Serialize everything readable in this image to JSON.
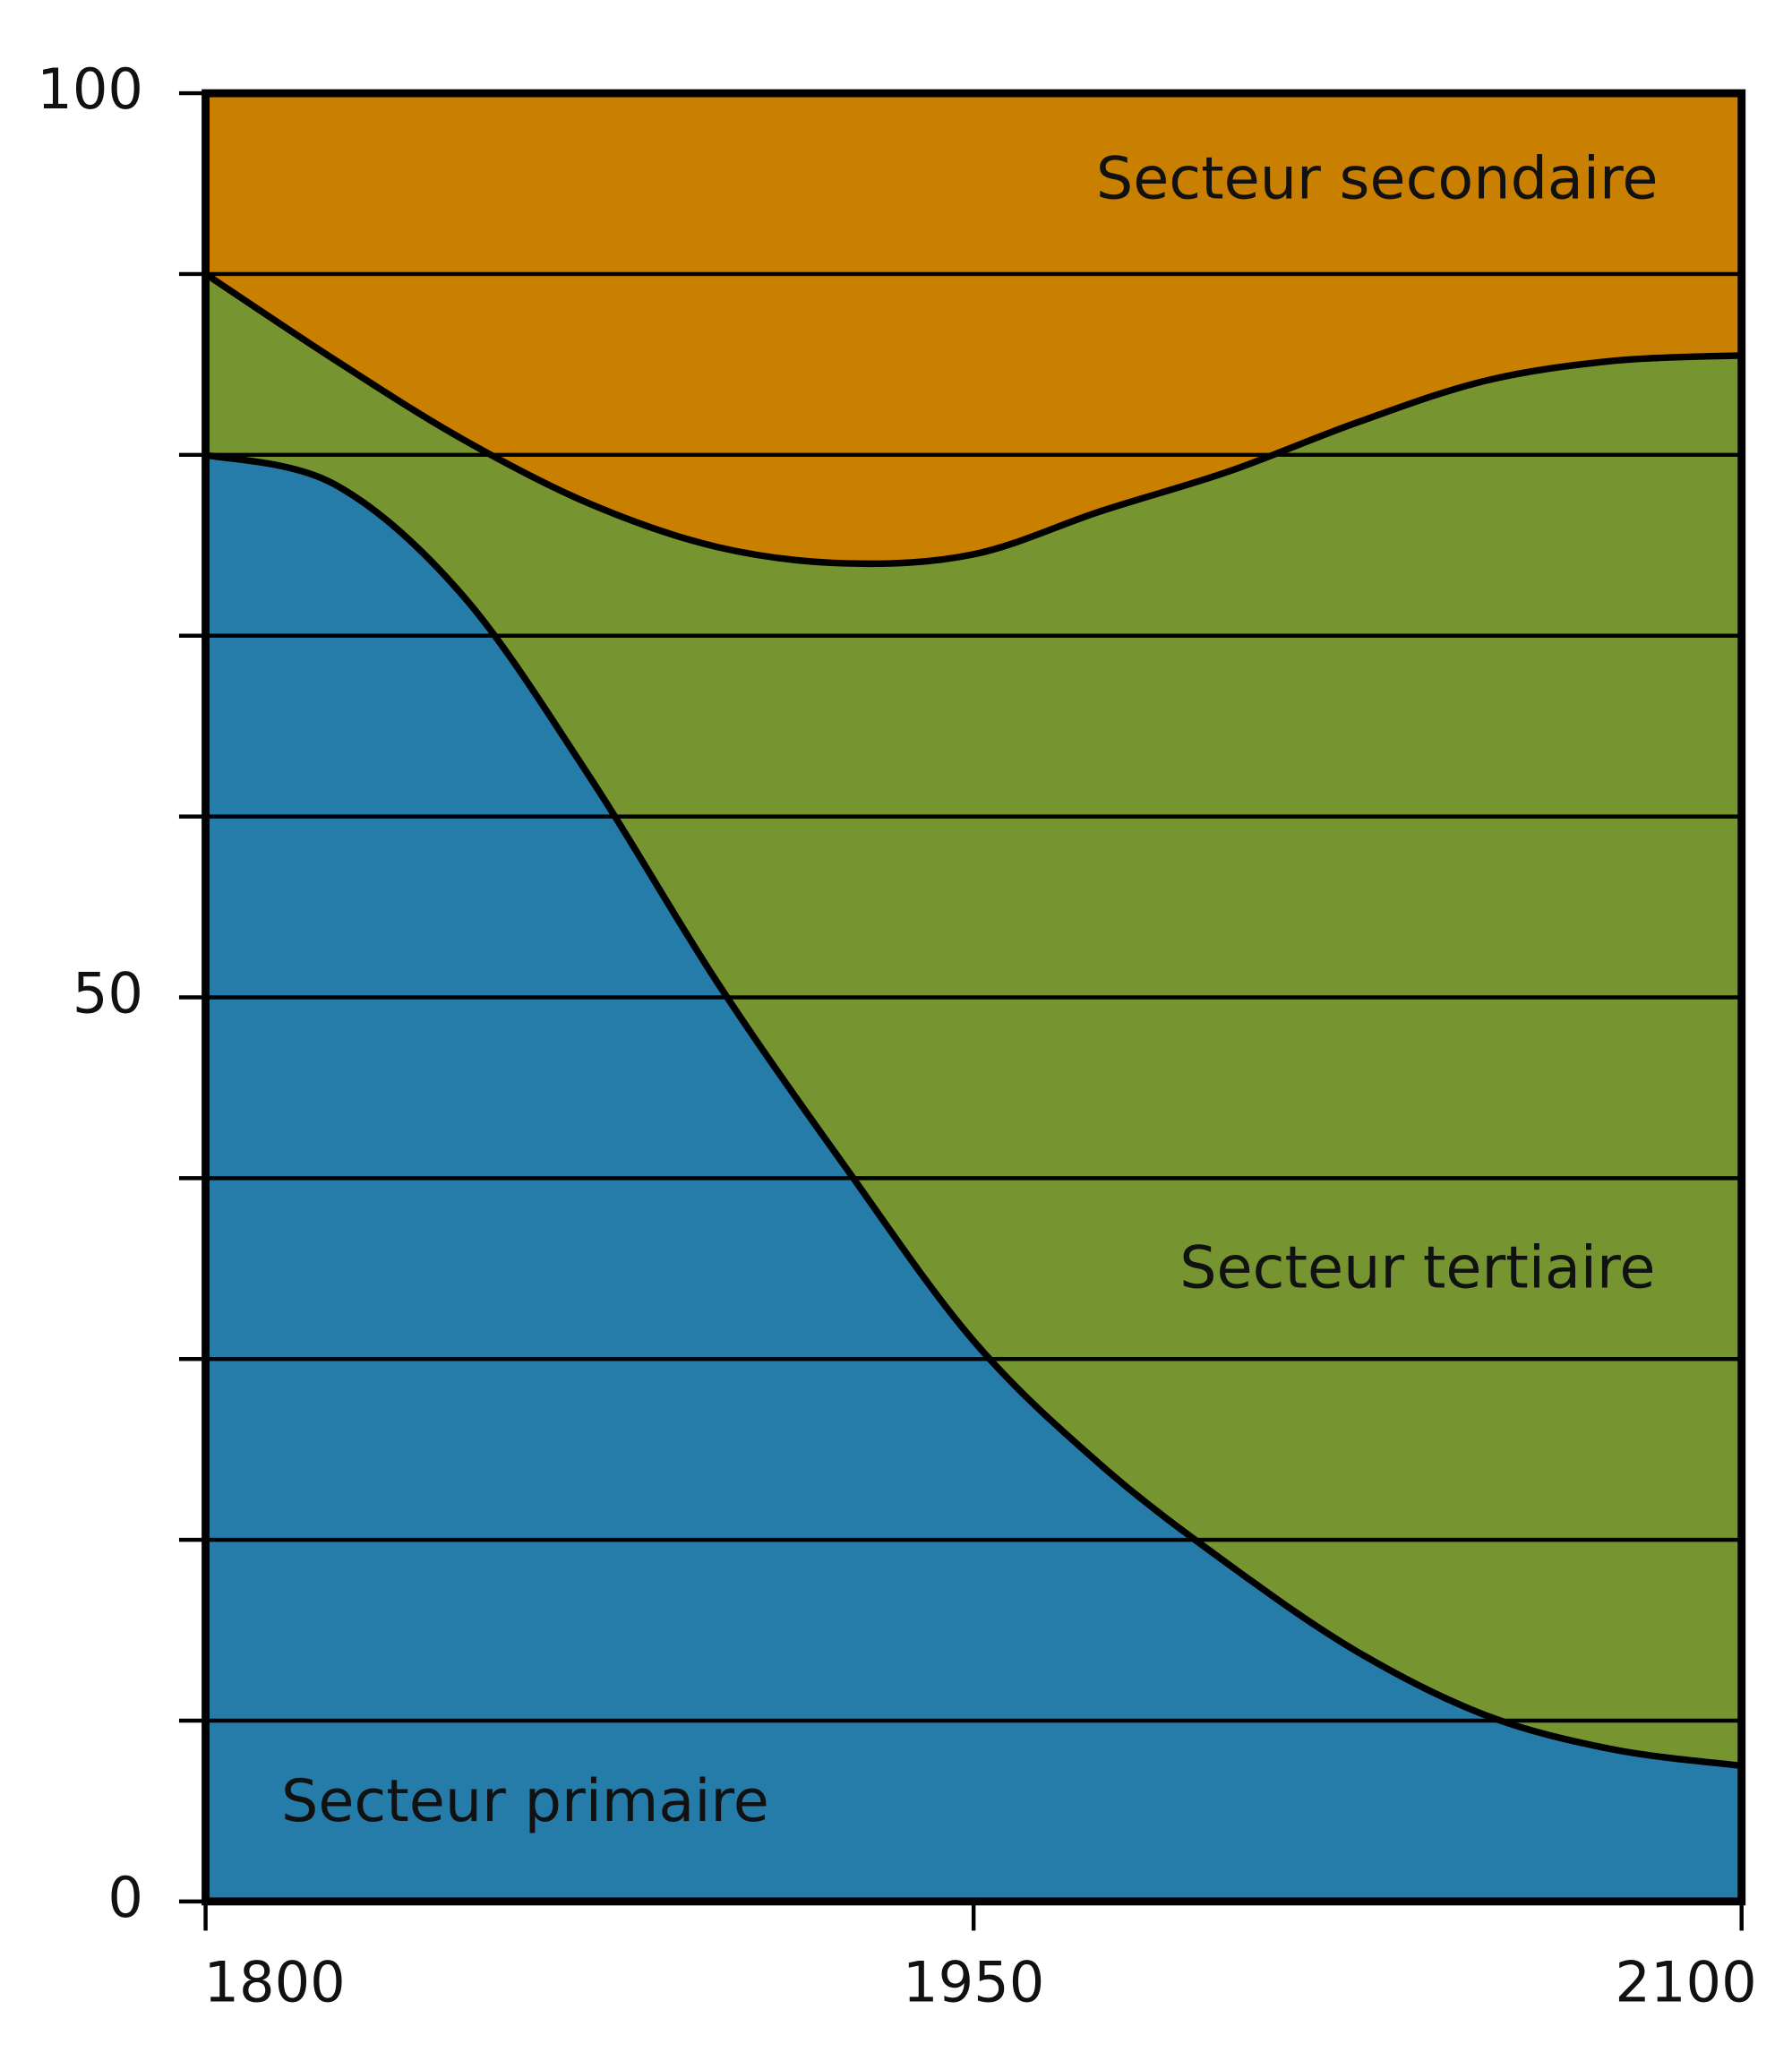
{
  "chart_data": {
    "type": "stacked_area",
    "x": [
      1800,
      1825,
      1850,
      1875,
      1900,
      1925,
      1950,
      1975,
      2000,
      2025,
      2050,
      2075,
      2100
    ],
    "series": [
      {
        "name": "Secteur primaire",
        "color": "#267ca8",
        "values": [
          80,
          78.4,
          72.3,
          62.2,
          50.8,
          40.6,
          31.0,
          24.1,
          18.6,
          13.8,
          10.3,
          8.4,
          7.5
        ]
      },
      {
        "name": "Secteur tertiaire",
        "color": "#769530",
        "values": [
          10,
          6.9,
          8.6,
          15.1,
          24.1,
          33.4,
          43.5,
          52.8,
          60.5,
          68.0,
          73.8,
          76.8,
          78.0
        ]
      },
      {
        "name": "Secteur secondaire",
        "color": "#c97f00",
        "values": [
          10,
          14.7,
          19.1,
          22.7,
          25.1,
          26.0,
          25.5,
          23.1,
          20.9,
          18.2,
          15.9,
          14.8,
          14.5
        ]
      }
    ],
    "xlim": [
      1800,
      2100
    ],
    "xticks": [
      1800,
      1950,
      2100
    ],
    "ylim": [
      0,
      100
    ],
    "yticks": [
      0,
      50,
      100
    ],
    "minor_yticks": [
      10,
      20,
      30,
      40,
      60,
      70,
      80,
      90
    ],
    "grid": true
  }
}
